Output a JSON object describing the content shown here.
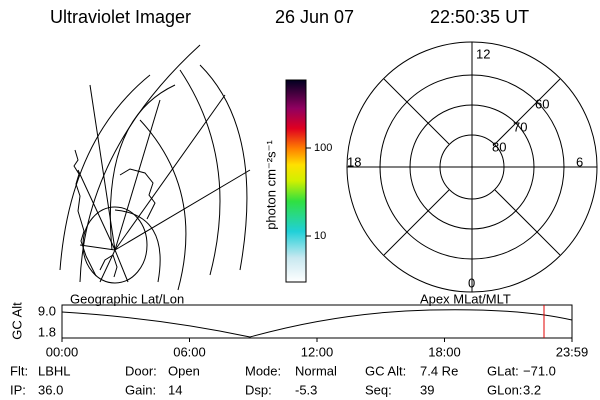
{
  "header": {
    "instrument": "Ultraviolet Imager",
    "date": "26 Jun 07",
    "time": "22:50:35 UT"
  },
  "map_panel": {
    "label": "Geographic Lat/Lon"
  },
  "color_bar": {
    "label": "photon cm⁻²s⁻¹",
    "ticks": [
      "100",
      "10"
    ]
  },
  "polar_panel": {
    "label": "Apex MLat/MLT",
    "mlt_labels": {
      "top": "12",
      "right": "6",
      "bottom": "0",
      "left": "18"
    },
    "mlat_labels": [
      "60",
      "70",
      "80"
    ]
  },
  "altitude_plot": {
    "ylabel": "GC Alt",
    "yticks": [
      "9.0",
      "1.8"
    ],
    "xticks": [
      "00:00",
      "06:00",
      "12:00",
      "18:00",
      "23:59"
    ]
  },
  "status": [
    [
      {
        "label": "Flt:",
        "value": "LBHL"
      },
      {
        "label": "Door:",
        "value": "Open"
      },
      {
        "label": "Mode:",
        "value": "Normal"
      },
      {
        "label": "GC Alt:",
        "value": "7.4 Re"
      },
      {
        "label": "GLat:",
        "value": "−71.0"
      }
    ],
    [
      {
        "label": "IP:",
        "value": "36.0"
      },
      {
        "label": "Gain:",
        "value": "14"
      },
      {
        "label": "Dsp:",
        "value": "-5.3"
      },
      {
        "label": "Seq:",
        "value": "39"
      },
      {
        "label": "GLon:",
        "value": "3.2"
      }
    ]
  ]
}
